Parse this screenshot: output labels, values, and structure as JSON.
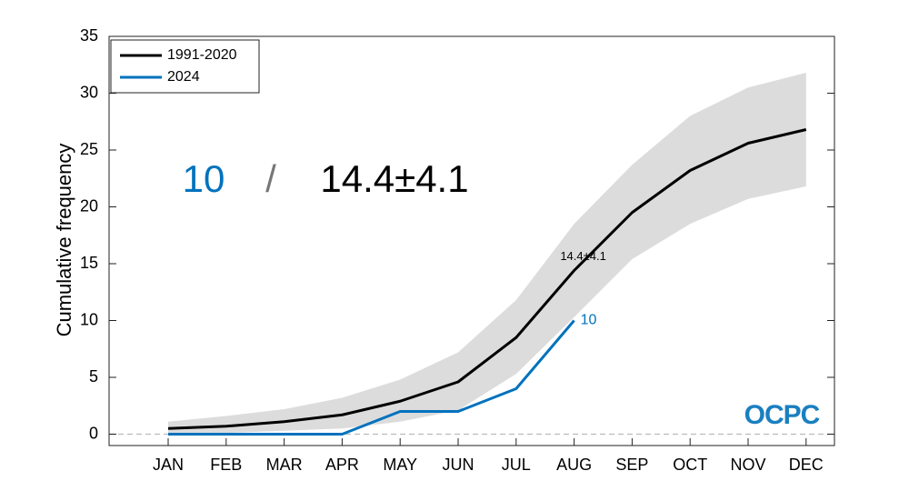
{
  "chart_data": {
    "type": "line",
    "y_label": "Cumulative frequency",
    "categories": [
      "JAN",
      "FEB",
      "MAR",
      "APR",
      "MAY",
      "JUN",
      "JUL",
      "AUG",
      "SEP",
      "OCT",
      "NOV",
      "DEC"
    ],
    "series": [
      {
        "name": "1991-2020",
        "color": "#000000",
        "values": [
          0.5,
          0.7,
          1.1,
          1.7,
          2.9,
          4.6,
          8.5,
          14.4,
          19.5,
          23.2,
          25.6,
          26.8
        ]
      },
      {
        "name": "2024",
        "color": "#0072bd",
        "values": [
          0,
          0,
          0,
          0,
          2,
          2,
          4,
          10,
          null,
          null,
          null,
          null
        ]
      }
    ],
    "band": {
      "color": "#dcdcdc",
      "lower": [
        0,
        0.1,
        0.3,
        0.5,
        1.1,
        2.1,
        5.3,
        10.3,
        15.4,
        18.5,
        20.7,
        21.8
      ],
      "upper": [
        1.1,
        1.6,
        2.2,
        3.2,
        4.8,
        7.2,
        11.8,
        18.5,
        23.7,
        28,
        30.5,
        31.8
      ]
    },
    "zero_line": 0,
    "ylim": [
      -1,
      35
    ],
    "yticks": [
      0,
      5,
      10,
      15,
      20,
      25,
      30,
      35
    ],
    "legend": "upper left",
    "annotations": {
      "big_current": "10",
      "big_separator": "/",
      "big_climatology": "14.4±4.1",
      "current_label": "10",
      "climatology_label": "14.4±4.1",
      "logo": "OCPC"
    }
  }
}
